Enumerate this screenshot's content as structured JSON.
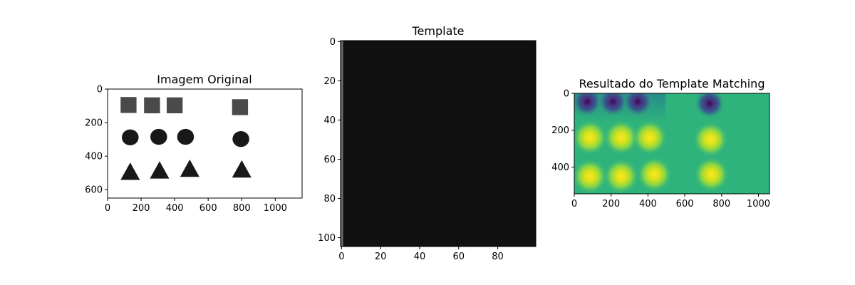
{
  "chart_data": [
    {
      "type": "image",
      "title": "Imagem Original",
      "xlim": [
        0,
        1160
      ],
      "ylim": [
        650,
        0
      ],
      "xticks": [
        0,
        200,
        400,
        600,
        800,
        1000
      ],
      "yticks": [
        0,
        200,
        400,
        600
      ],
      "background": "#ffffff",
      "objects": [
        {
          "shape": "square",
          "x": 125,
          "y": 95,
          "size": 95,
          "color": "#4a4a4a"
        },
        {
          "shape": "square",
          "x": 265,
          "y": 97,
          "size": 95,
          "color": "#4a4a4a"
        },
        {
          "shape": "square",
          "x": 400,
          "y": 97,
          "size": 95,
          "color": "#4a4a4a"
        },
        {
          "shape": "square",
          "x": 790,
          "y": 108,
          "size": 95,
          "color": "#4a4a4a"
        },
        {
          "shape": "circle",
          "x": 135,
          "y": 288,
          "size": 100,
          "color": "#181818"
        },
        {
          "shape": "circle",
          "x": 305,
          "y": 285,
          "size": 100,
          "color": "#181818"
        },
        {
          "shape": "circle",
          "x": 465,
          "y": 285,
          "size": 100,
          "color": "#181818"
        },
        {
          "shape": "circle",
          "x": 795,
          "y": 298,
          "size": 100,
          "color": "#181818"
        },
        {
          "shape": "triangle",
          "x": 135,
          "y": 490,
          "size": 115,
          "color": "#181818"
        },
        {
          "shape": "triangle",
          "x": 310,
          "y": 482,
          "size": 115,
          "color": "#181818"
        },
        {
          "shape": "triangle",
          "x": 490,
          "y": 472,
          "size": 115,
          "color": "#181818"
        },
        {
          "shape": "triangle",
          "x": 800,
          "y": 476,
          "size": 115,
          "color": "#181818"
        }
      ]
    },
    {
      "type": "image",
      "title": "Template",
      "xlim": [
        -0.5,
        99.5
      ],
      "ylim": [
        104.5,
        -0.5
      ],
      "xticks": [
        0,
        20,
        40,
        60,
        80
      ],
      "yticks": [
        0,
        20,
        40,
        60,
        80,
        100
      ],
      "fill_color": "#111111",
      "edge_color": "#6e6e6e"
    },
    {
      "type": "heatmap",
      "title": "Resultado do Template Matching",
      "xlim": [
        0,
        1060
      ],
      "ylim": [
        545,
        0
      ],
      "xticks": [
        0,
        200,
        400,
        600,
        800,
        1000
      ],
      "yticks": [
        0,
        200,
        400
      ],
      "colormap": "viridis",
      "background": "#2eb37c",
      "minima": [
        {
          "x": 70,
          "y": 45
        },
        {
          "x": 210,
          "y": 45
        },
        {
          "x": 345,
          "y": 45
        },
        {
          "x": 735,
          "y": 55
        }
      ],
      "maxima": [
        {
          "x": 85,
          "y": 240
        },
        {
          "x": 255,
          "y": 240
        },
        {
          "x": 410,
          "y": 240
        },
        {
          "x": 740,
          "y": 250
        },
        {
          "x": 85,
          "y": 450
        },
        {
          "x": 255,
          "y": 450
        },
        {
          "x": 435,
          "y": 440
        },
        {
          "x": 745,
          "y": 440
        }
      ]
    }
  ]
}
